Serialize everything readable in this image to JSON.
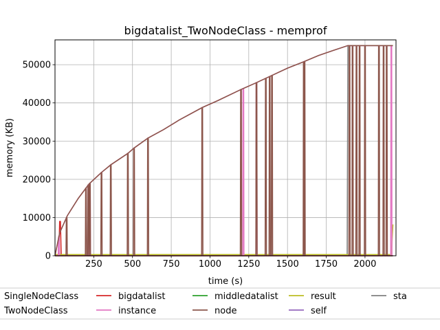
{
  "chart_data": {
    "type": "line",
    "title": "bigdatalist_TwoNodeClass - memprof",
    "xlabel": "time (s)",
    "ylabel": "memory (KB)",
    "xlim": [
      0,
      2200
    ],
    "ylim": [
      0,
      56500
    ],
    "xticks": [
      250,
      500,
      750,
      1000,
      1250,
      1500,
      1750,
      2000
    ],
    "yticks": [
      0,
      10000,
      20000,
      30000,
      40000,
      50000
    ],
    "grid": true,
    "legend_placement": "bottom",
    "envelope": {
      "x": [
        0,
        30,
        80,
        150,
        220,
        300,
        360,
        470,
        510,
        600,
        700,
        800,
        950,
        1050,
        1200,
        1300,
        1400,
        1500,
        1600,
        1700,
        1800,
        1890,
        2180
      ],
      "y": [
        0,
        6000,
        10500,
        15000,
        18800,
        21800,
        23800,
        26800,
        28200,
        30800,
        33000,
        35500,
        38800,
        40600,
        43500,
        45300,
        47200,
        49100,
        50700,
        52400,
        53800,
        55000,
        55000
      ]
    },
    "series": [
      {
        "name": "SingleNodeClass",
        "color": "#1f77b4",
        "x": [
          0,
          2180
        ],
        "y": [
          0,
          0
        ]
      },
      {
        "name": "TwoNodeClass",
        "color": "#ff7f0e",
        "x": [
          0,
          2180
        ],
        "y": [
          0,
          0
        ]
      },
      {
        "name": "bigdatalist",
        "color": "#d62728",
        "x": [
          0,
          25,
          30,
          35,
          40,
          2180
        ],
        "y": [
          0,
          0,
          9000,
          9000,
          0,
          0
        ]
      },
      {
        "name": "instance",
        "color": "#e377c2",
        "spikes": [
          25,
          215,
          225,
          1215,
          1300,
          2170
        ]
      },
      {
        "name": "middledatalist",
        "color": "#2ca02c",
        "x": [
          0,
          2180
        ],
        "y": [
          0,
          0
        ]
      },
      {
        "name": "node",
        "color": "#8c564b",
        "spikes": [
          75,
          200,
          215,
          225,
          300,
          360,
          470,
          510,
          600,
          950,
          1200,
          1300,
          1360,
          1385,
          1400,
          1605,
          1610,
          1900,
          1920,
          1945,
          1965,
          2000,
          2090,
          2120,
          2140
        ]
      },
      {
        "name": "result",
        "color": "#bcbd22",
        "x": [
          0,
          2170,
          2180
        ],
        "y": [
          300,
          300,
          8200
        ]
      },
      {
        "name": "self",
        "color": "#9467bd",
        "x": [
          0,
          2180
        ],
        "y": [
          0,
          0
        ]
      },
      {
        "name": "sta",
        "color": "#7f7f7f",
        "x": [
          0,
          1885,
          1890,
          2180
        ],
        "y": [
          0,
          0,
          55000,
          55000
        ]
      }
    ]
  }
}
